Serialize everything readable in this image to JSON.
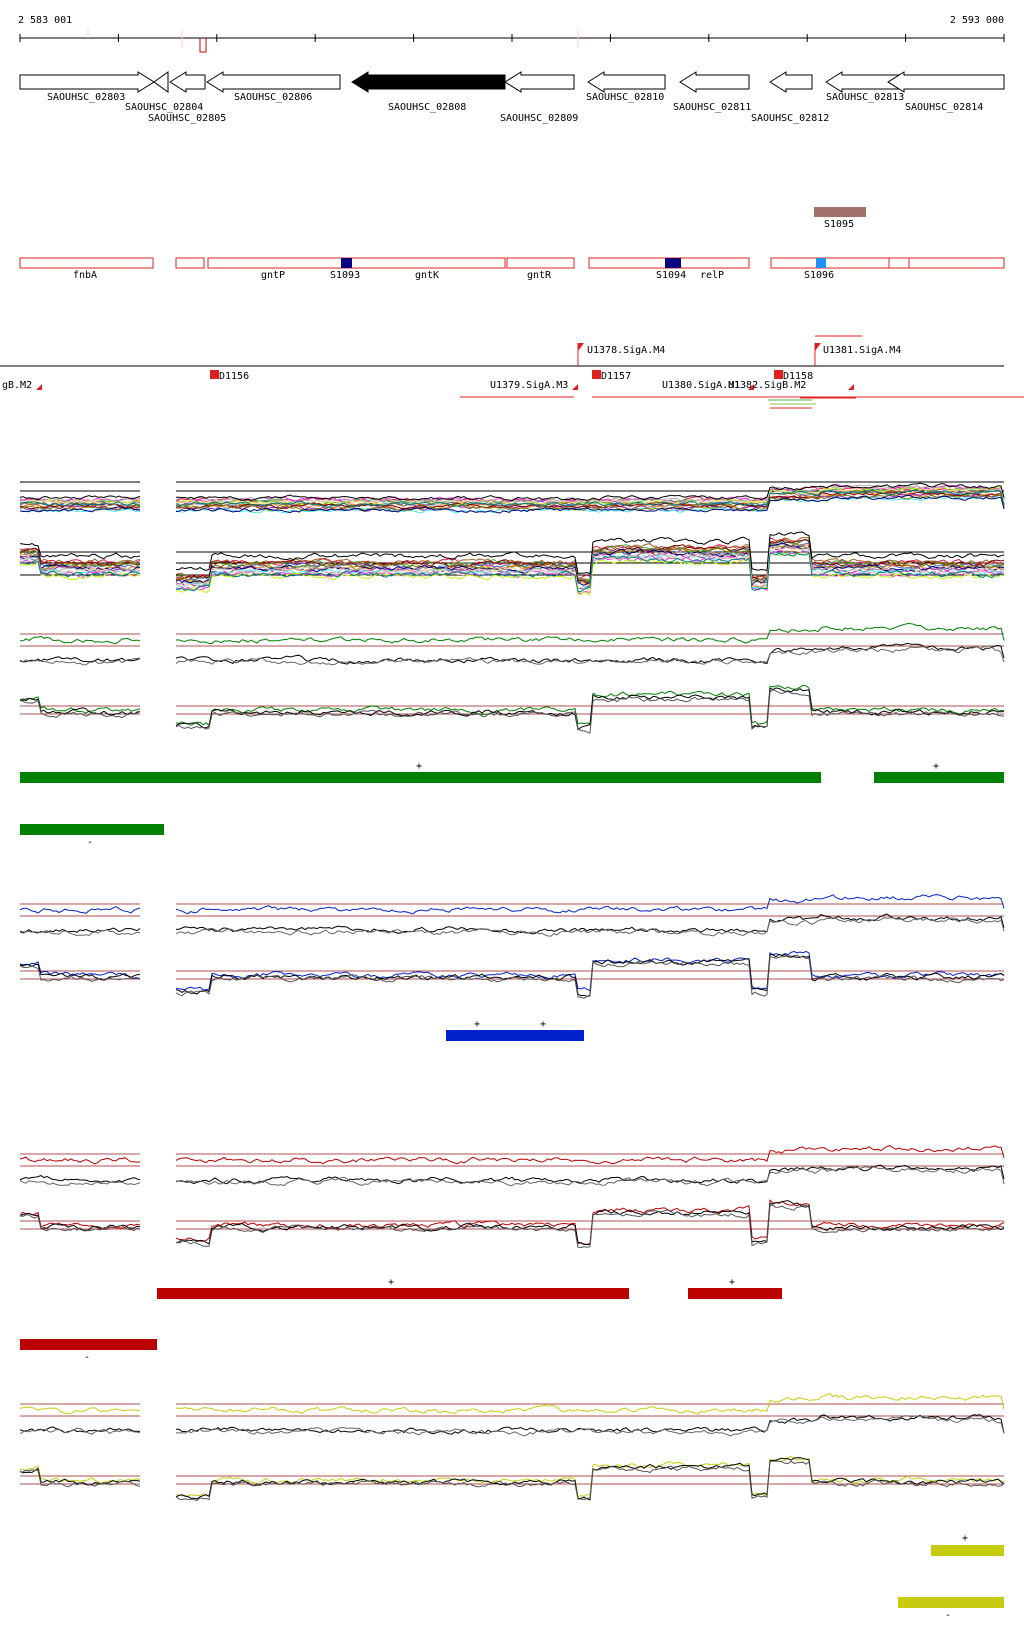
{
  "coords": {
    "start": "2 583 001",
    "end": "2 593 000"
  },
  "genes": [
    {
      "label": "SAOUHSC_02803",
      "dir": "right",
      "filled": false
    },
    {
      "label": "SAOUHSC_02804",
      "dir": "left",
      "filled": false
    },
    {
      "label": "SAOUHSC_02805",
      "dir": "left",
      "filled": false
    },
    {
      "label": "SAOUHSC_02806",
      "dir": "left",
      "filled": false
    },
    {
      "label": "SAOUHSC_02808",
      "dir": "left",
      "filled": true
    },
    {
      "label": "SAOUHSC_02809",
      "dir": "left",
      "filled": false
    },
    {
      "label": "SAOUHSC_02810",
      "dir": "left",
      "filled": false
    },
    {
      "label": "SAOUHSC_02811",
      "dir": "left",
      "filled": false
    },
    {
      "label": "SAOUHSC_02812",
      "dir": "left",
      "filled": false
    },
    {
      "label": "SAOUHSC_02813",
      "dir": "left",
      "filled": false
    },
    {
      "label": "SAOUHSC_02814",
      "dir": "right",
      "filled": false
    }
  ],
  "features": [
    {
      "label": "S1095",
      "color": "#a0706a"
    }
  ],
  "regions": [
    "fnbA",
    "gntP",
    "gntK",
    "gntR",
    "relP"
  ],
  "regionMarkers": [
    {
      "label": "S1093",
      "color": "#000080"
    },
    {
      "label": "S1094",
      "color": "#000080"
    },
    {
      "label": "S1096",
      "color": "#1e90ff"
    }
  ],
  "promoters": [
    "gB.M2",
    "D1156",
    "U1378.SigA.M4",
    "U1379.SigA.M3",
    "D1157",
    "U1380.SigA.M1",
    "U1382.SigB.M2",
    "D1158",
    "U1381.SigA.M4"
  ],
  "tracks": [
    {
      "color": "#008000",
      "strands": [
        "+",
        "-"
      ]
    },
    {
      "color": "#0022cc",
      "strands": [
        "+",
        "+"
      ]
    },
    {
      "color": "#bb0000",
      "strands": [
        "+",
        "+",
        "-"
      ]
    },
    {
      "color": "#c8cc10",
      "strands": [
        "+",
        "-"
      ]
    }
  ]
}
